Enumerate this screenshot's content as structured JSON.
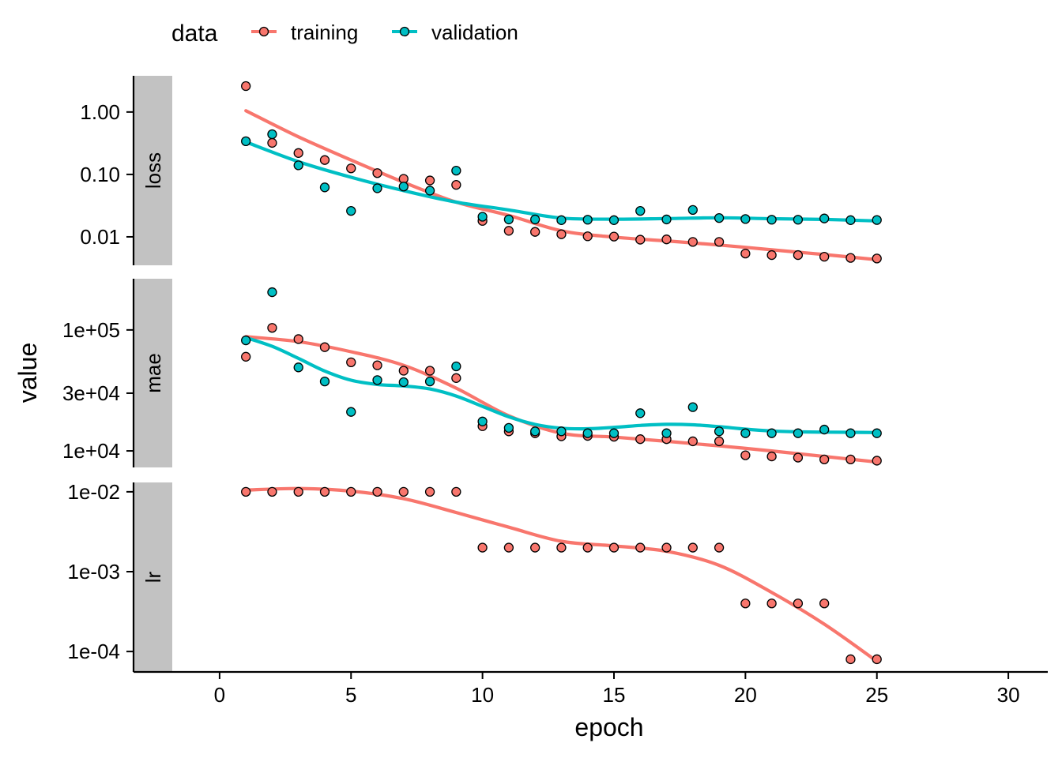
{
  "chart_data": {
    "type": "scatter",
    "legend": {
      "title": "data",
      "position": "top-left",
      "entries": [
        {
          "name": "training",
          "color": "#F8766D"
        },
        {
          "name": "validation",
          "color": "#00BFC4"
        }
      ]
    },
    "xlabel": "epoch",
    "ylabel": "value",
    "x_ticks": [
      0,
      5,
      10,
      15,
      20,
      25,
      30
    ],
    "x_tick_labels": [
      "0",
      "5",
      "10",
      "15",
      "20",
      "25",
      "30"
    ],
    "xlim": [
      -1.8,
      31.5
    ],
    "y_scale": "log10",
    "grid": false,
    "panels": [
      {
        "name": "loss",
        "ylim": [
          0.0035,
          3.8
        ],
        "y_ticks": [
          1.0,
          0.1,
          0.01
        ],
        "y_tick_labels": [
          "1.00",
          "0.10",
          "0.01"
        ],
        "series": [
          {
            "name": "training",
            "x": [
              1,
              2,
              3,
              4,
              5,
              6,
              7,
              8,
              9,
              10,
              11,
              12,
              13,
              14,
              15,
              16,
              17,
              18,
              19,
              20,
              21,
              22,
              23,
              24,
              25
            ],
            "y": [
              2.6,
              0.32,
              0.22,
              0.17,
              0.125,
              0.105,
              0.085,
              0.08,
              0.068,
              0.018,
              0.0125,
              0.012,
              0.011,
              0.0102,
              0.0101,
              0.009,
              0.0091,
              0.0083,
              0.0083,
              0.0054,
              0.0051,
              0.0051,
              0.0048,
              0.0046,
              0.0045
            ],
            "smooth": [
              [
                1,
                1.05
              ],
              [
                3,
                0.4
              ],
              [
                5,
                0.17
              ],
              [
                7,
                0.075
              ],
              [
                9,
                0.036
              ],
              [
                11,
                0.022
              ],
              [
                13,
                0.0125
              ],
              [
                15,
                0.0099
              ],
              [
                17,
                0.0086
              ],
              [
                19,
                0.0074
              ],
              [
                21,
                0.0062
              ],
              [
                23,
                0.0052
              ],
              [
                25,
                0.0043
              ]
            ]
          },
          {
            "name": "validation",
            "x": [
              1,
              2,
              3,
              4,
              5,
              6,
              7,
              8,
              9,
              10,
              11,
              12,
              13,
              14,
              15,
              16,
              17,
              18,
              19,
              20,
              21,
              22,
              23,
              24,
              25
            ],
            "y": [
              0.34,
              0.44,
              0.14,
              0.062,
              0.026,
              0.06,
              0.064,
              0.055,
              0.115,
              0.021,
              0.019,
              0.019,
              0.0185,
              0.0188,
              0.0185,
              0.026,
              0.019,
              0.027,
              0.02,
              0.0193,
              0.0188,
              0.0188,
              0.0197,
              0.0185,
              0.0186
            ],
            "smooth": [
              [
                1,
                0.33
              ],
              [
                3,
                0.16
              ],
              [
                5,
                0.09
              ],
              [
                7,
                0.055
              ],
              [
                9,
                0.036
              ],
              [
                11,
                0.027
              ],
              [
                13,
                0.02
              ],
              [
                15,
                0.0192
              ],
              [
                17,
                0.0196
              ],
              [
                19,
                0.0202
              ],
              [
                21,
                0.0195
              ],
              [
                23,
                0.019
              ],
              [
                25,
                0.018
              ]
            ]
          }
        ]
      },
      {
        "name": "mae",
        "ylim": [
          7300,
          265000
        ],
        "y_ticks": [
          100000,
          30000,
          10000
        ],
        "y_tick_labels": [
          "1e+05",
          "3e+04",
          "1e+04"
        ],
        "series": [
          {
            "name": "training",
            "x": [
              1,
              2,
              3,
              4,
              5,
              6,
              7,
              8,
              9,
              10,
              11,
              12,
              13,
              14,
              15,
              16,
              17,
              18,
              19,
              20,
              21,
              22,
              23,
              24,
              25
            ],
            "y": [
              60000,
              104000,
              84000,
              72000,
              54000,
              51000,
              46000,
              46000,
              40000,
              16000,
              14500,
              14000,
              13200,
              13300,
              13100,
              12500,
              12500,
              12000,
              12000,
              9200,
              9000,
              8800,
              8500,
              8500,
              8300
            ],
            "smooth": [
              [
                1,
                88000
              ],
              [
                3,
                80000
              ],
              [
                5,
                66000
              ],
              [
                7,
                51000
              ],
              [
                9,
                33000
              ],
              [
                11,
                19500
              ],
              [
                13,
                14000
              ],
              [
                15,
                13000
              ],
              [
                17,
                12000
              ],
              [
                19,
                11000
              ],
              [
                21,
                10000
              ],
              [
                23,
                9000
              ],
              [
                25,
                8100
              ]
            ]
          },
          {
            "name": "validation",
            "x": [
              1,
              2,
              3,
              4,
              5,
              6,
              7,
              8,
              9,
              10,
              11,
              12,
              13,
              14,
              15,
              16,
              17,
              18,
              19,
              20,
              21,
              22,
              23,
              24,
              25
            ],
            "y": [
              82000,
              205000,
              49000,
              37500,
              21000,
              38500,
              37000,
              37500,
              50000,
              17500,
              15500,
              14500,
              14500,
              14000,
              14000,
              20500,
              14000,
              23000,
              14500,
              14000,
              14000,
              14000,
              15000,
              14000,
              14000
            ]
          }
        ]
      },
      {
        "name": "lr",
        "ylim": [
          5.55e-05,
          0.0131
        ],
        "y_ticks": [
          0.01,
          0.001,
          0.0001
        ],
        "y_tick_labels": [
          "1e-02",
          "1e-03",
          "1e-04"
        ],
        "series": [
          {
            "name": "training",
            "x": [
              1,
              2,
              3,
              4,
              5,
              6,
              7,
              8,
              9,
              10,
              11,
              12,
              13,
              14,
              15,
              16,
              17,
              18,
              19,
              20,
              21,
              22,
              23,
              24,
              25
            ],
            "y": [
              0.01,
              0.01,
              0.01,
              0.01,
              0.01,
              0.01,
              0.01,
              0.01,
              0.01,
              0.002,
              0.002,
              0.002,
              0.002,
              0.002,
              0.002,
              0.002,
              0.002,
              0.002,
              0.002,
              0.0004,
              0.0004,
              0.0004,
              0.0004,
              8e-05,
              8e-05
            ],
            "smooth": [
              [
                1,
                0.0105
              ],
              [
                3,
                0.011
              ],
              [
                5,
                0.0102
              ],
              [
                7,
                0.0082
              ],
              [
                9,
                0.0055
              ],
              [
                11,
                0.0036
              ],
              [
                13,
                0.0024
              ],
              [
                15,
                0.0021
              ],
              [
                17,
                0.0018
              ],
              [
                19,
                0.0012
              ],
              [
                21,
                0.00055
              ],
              [
                23,
                0.00022
              ],
              [
                25,
                7.55e-05
              ]
            ]
          }
        ]
      }
    ]
  }
}
